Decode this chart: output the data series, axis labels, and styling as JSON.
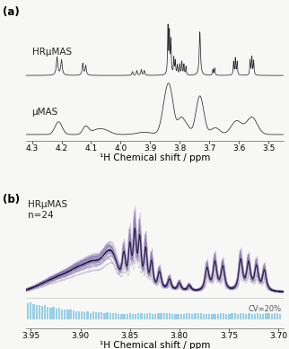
{
  "panel_a_label": "(a)",
  "panel_b_label": "(b)",
  "label_hrumas": "HRμMAS",
  "label_umas": "μMAS",
  "label_hrumas_b": "HRμMAS",
  "label_n24": "n=24",
  "xlabel_a": "¹H Chemical shift / ppm",
  "xlabel_b": "¹H Chemical shift / ppm",
  "cv_label": "CV=20%",
  "xlim_a": [
    4.32,
    3.45
  ],
  "xlim_b": [
    3.955,
    3.695
  ],
  "background_color": "#f7f7f5",
  "line_color_a": "#2a2a35",
  "line_color_b_dark": "#2d1f4a",
  "line_color_b_light": "#8878b0",
  "bar_color": "#8ecae6",
  "tick_label_fontsize": 6.5,
  "axis_label_fontsize": 7.5,
  "annotation_fontsize": 7.5,
  "cv_fontsize": 6
}
